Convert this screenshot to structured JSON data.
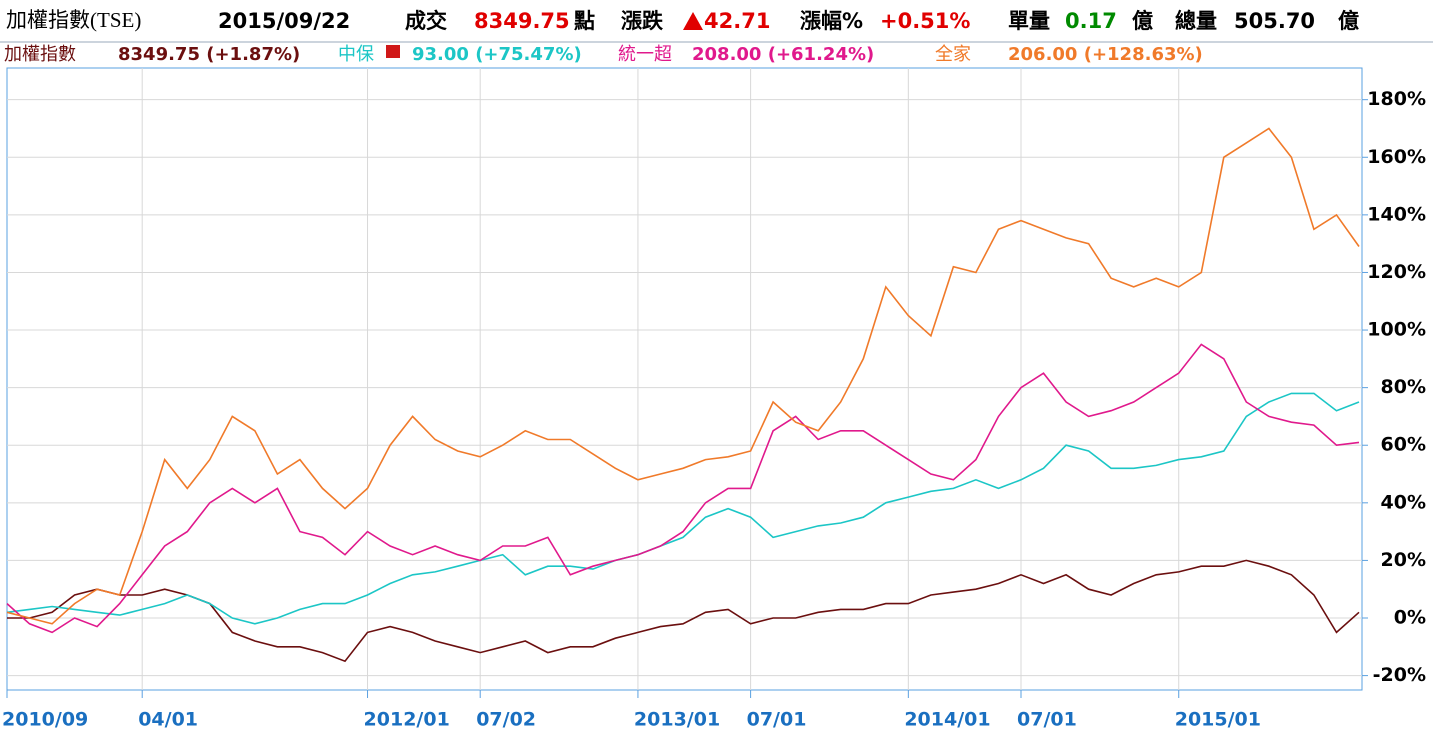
{
  "header": {
    "title": "加權指數(TSE)",
    "date": "2015/09/22",
    "volume_label": "成交",
    "index_value": "8349.75",
    "points_unit": "點",
    "change_label": "漲跌",
    "change": "42.71",
    "pct_label": "漲幅%",
    "pct": "+0.51%",
    "single_label": "單量",
    "single": "0.17",
    "single_unit": "億",
    "total_label": "總量",
    "total": "505.70",
    "total_unit": "億"
  },
  "chart_data": {
    "type": "line",
    "categories": [
      "2010/09",
      null,
      null,
      null,
      null,
      null,
      "04/01",
      null,
      null,
      null,
      null,
      null,
      null,
      null,
      null,
      null,
      "2012/01",
      null,
      null,
      null,
      null,
      "07/02",
      null,
      null,
      null,
      null,
      null,
      null,
      "2013/01",
      null,
      null,
      null,
      null,
      "07/01",
      null,
      null,
      null,
      null,
      null,
      null,
      "2014/01",
      null,
      null,
      null,
      null,
      "07/01",
      null,
      null,
      null,
      null,
      null,
      null,
      "2015/01",
      null,
      null,
      null,
      null,
      null,
      null,
      null,
      null
    ],
    "series": [
      {
        "name": "加權指數",
        "value_label": "8349.75 (+1.87%)",
        "color": "#6b0f0f",
        "values": [
          0,
          0,
          2,
          8,
          10,
          8,
          8,
          10,
          8,
          5,
          -5,
          -8,
          -10,
          -10,
          -12,
          -15,
          -5,
          -3,
          -5,
          -8,
          -10,
          -12,
          -10,
          -8,
          -12,
          -10,
          -10,
          -7,
          -5,
          -3,
          -2,
          2,
          3,
          -2,
          0,
          0,
          2,
          3,
          3,
          5,
          5,
          8,
          9,
          10,
          12,
          15,
          12,
          15,
          10,
          8,
          12,
          15,
          16,
          18,
          18,
          20,
          18,
          15,
          8,
          -5,
          2
        ]
      },
      {
        "name": "中保",
        "value_label": "93.00 (+75.47%)",
        "color": "#1cc6c6",
        "values": [
          2,
          3,
          4,
          3,
          2,
          1,
          3,
          5,
          8,
          5,
          0,
          -2,
          0,
          3,
          5,
          5,
          8,
          12,
          15,
          16,
          18,
          20,
          22,
          15,
          18,
          18,
          17,
          20,
          22,
          25,
          28,
          35,
          38,
          35,
          28,
          30,
          32,
          33,
          35,
          40,
          42,
          44,
          45,
          48,
          45,
          48,
          52,
          60,
          58,
          52,
          52,
          53,
          55,
          56,
          58,
          70,
          75,
          78,
          78,
          72,
          75
        ]
      },
      {
        "name": "統一超",
        "value_label": "208.00 (+61.24%)",
        "color": "#e0198c",
        "values": [
          5,
          -2,
          -5,
          0,
          -3,
          5,
          15,
          25,
          30,
          40,
          45,
          40,
          45,
          30,
          28,
          22,
          30,
          25,
          22,
          25,
          22,
          20,
          25,
          25,
          28,
          15,
          18,
          20,
          22,
          25,
          30,
          40,
          45,
          45,
          65,
          70,
          62,
          65,
          65,
          60,
          55,
          50,
          48,
          55,
          70,
          80,
          85,
          75,
          70,
          72,
          75,
          80,
          85,
          95,
          90,
          75,
          70,
          68,
          67,
          60,
          61
        ]
      },
      {
        "name": "全家",
        "value_label": "206.00 (+128.63%)",
        "color": "#f07a2a",
        "values": [
          2,
          0,
          -2,
          5,
          10,
          8,
          30,
          55,
          45,
          55,
          70,
          65,
          50,
          55,
          45,
          38,
          45,
          60,
          70,
          62,
          58,
          56,
          60,
          65,
          62,
          62,
          57,
          52,
          48,
          50,
          52,
          55,
          56,
          58,
          75,
          68,
          65,
          75,
          90,
          115,
          105,
          98,
          122,
          120,
          135,
          138,
          135,
          132,
          130,
          118,
          115,
          118,
          115,
          120,
          160,
          165,
          170,
          160,
          135,
          140,
          129
        ]
      }
    ],
    "ylim": [
      -25,
      191
    ],
    "yticks": [
      {
        "value": -20,
        "label": "-20%"
      },
      {
        "value": 0,
        "label": "0%"
      },
      {
        "value": 20,
        "label": "20%"
      },
      {
        "value": 40,
        "label": "40%"
      },
      {
        "value": 60,
        "label": "60%"
      },
      {
        "value": 80,
        "label": "80%"
      },
      {
        "value": 100,
        "label": "100%"
      },
      {
        "value": 120,
        "label": "120%"
      },
      {
        "value": 140,
        "label": "140%"
      },
      {
        "value": 160,
        "label": "160%"
      },
      {
        "value": 180,
        "label": "180%"
      }
    ],
    "grid": true
  }
}
